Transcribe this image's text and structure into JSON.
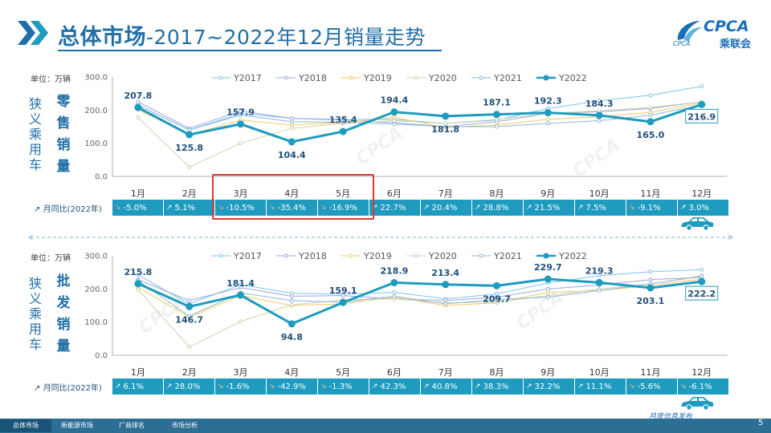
{
  "title": {
    "bold": "总体市场",
    "rest": "-2017~2022年12月销量走势"
  },
  "logo": {
    "abbr": "CPCA",
    "cn": "乘联会",
    "org": "CPCA"
  },
  "watermark_text": "CPCA",
  "footer": {
    "tabs": [
      "总体市场",
      "新能源市场",
      "厂商排名",
      "市场分析"
    ],
    "slogan": "月度信息发布",
    "page": "5"
  },
  "colors": {
    "primary": "#1f9bbf",
    "title": "#1f6fa8",
    "highlight": "#d93b33"
  },
  "chart_data": [
    {
      "type": "line",
      "unit": "单位：万辆",
      "side_label": "狭义乘用车",
      "label": "零售销量",
      "ylim": [
        0,
        300
      ],
      "yticks": [
        "0.0",
        "100.0",
        "200.0",
        "300.0"
      ],
      "categories": [
        "1月",
        "2月",
        "3月",
        "4月",
        "5月",
        "6月",
        "7月",
        "8月",
        "9月",
        "10月",
        "11月",
        "12月"
      ],
      "series": [
        {
          "name": "Y2017",
          "color": "#7fc4ee",
          "values": [
            215,
            140,
            190,
            175,
            172,
            172,
            160,
            170,
            205,
            228,
            245,
            272
          ]
        },
        {
          "name": "Y2018",
          "color": "#9ba6e0",
          "values": [
            225,
            145,
            197,
            175,
            170,
            162,
            150,
            165,
            190,
            195,
            205,
            225
          ]
        },
        {
          "name": "Y2019",
          "color": "#f2ca6a",
          "values": [
            202,
            125,
            170,
            155,
            162,
            178,
            148,
            155,
            172,
            180,
            193,
            222
          ]
        },
        {
          "name": "Y2020",
          "color": "#c8d6a8",
          "values": [
            178,
            28,
            100,
            145,
            160,
            168,
            160,
            172,
            190,
            198,
            208,
            225
          ]
        },
        {
          "name": "Y2021",
          "color": "#8cb8d8",
          "values": [
            215,
            140,
            185,
            165,
            163,
            158,
            150,
            150,
            160,
            168,
            185,
            215
          ]
        },
        {
          "name": "Y2022",
          "color": "#1f9bbf",
          "highlight": true,
          "values": [
            207.8,
            125.8,
            157.9,
            104.4,
            135.4,
            194.4,
            181.8,
            187.1,
            192.3,
            184.3,
            165.0,
            216.9
          ]
        }
      ],
      "data_labels": [
        "207.8",
        "125.8",
        "157.9",
        "104.4",
        "135.4",
        "194.4",
        "181.8",
        "187.1",
        "192.3",
        "184.3",
        "165.0",
        "216.9"
      ],
      "yoy_label": "月同比(2022年)",
      "yoy": [
        {
          "text": "-5.0%",
          "dir": "down"
        },
        {
          "text": "5.1%",
          "dir": "up"
        },
        {
          "text": "-10.5%",
          "dir": "down"
        },
        {
          "text": "-35.4%",
          "dir": "down"
        },
        {
          "text": "-16.9%",
          "dir": "down"
        },
        {
          "text": "22.7%",
          "dir": "up"
        },
        {
          "text": "20.4%",
          "dir": "up"
        },
        {
          "text": "28.8%",
          "dir": "up"
        },
        {
          "text": "21.5%",
          "dir": "up"
        },
        {
          "text": "7.5%",
          "dir": "up"
        },
        {
          "text": "-9.1%",
          "dir": "down"
        },
        {
          "text": "3.0%",
          "dir": "up"
        }
      ]
    },
    {
      "type": "line",
      "unit": "单位：万辆",
      "side_label": "狭义乘用车",
      "label": "批发销量",
      "ylim": [
        0,
        300
      ],
      "yticks": [
        "0.0",
        "100.0",
        "200.0",
        "300.0"
      ],
      "categories": [
        "1月",
        "2月",
        "3月",
        "4月",
        "5月",
        "6月",
        "7月",
        "8月",
        "9月",
        "10月",
        "11月",
        "12月"
      ],
      "series": [
        {
          "name": "Y2017",
          "color": "#7fc4ee",
          "values": [
            242,
            155,
            213,
            187,
            184,
            190,
            170,
            185,
            218,
            240,
            252,
            258
          ]
        },
        {
          "name": "Y2018",
          "color": "#9ba6e0",
          "values": [
            228,
            165,
            204,
            178,
            180,
            170,
            165,
            175,
            200,
            212,
            228,
            235
          ]
        },
        {
          "name": "Y2019",
          "color": "#f2ca6a",
          "values": [
            205,
            115,
            180,
            150,
            155,
            175,
            150,
            158,
            190,
            195,
            210,
            230
          ]
        },
        {
          "name": "Y2020",
          "color": "#c8d6a8",
          "values": [
            198,
            25,
            102,
            152,
            167,
            170,
            158,
            160,
            180,
            200,
            215,
            240
          ]
        },
        {
          "name": "Y2021",
          "color": "#8cb8d8",
          "values": [
            225,
            118,
            188,
            165,
            160,
            178,
            155,
            168,
            175,
            195,
            215,
            238
          ]
        },
        {
          "name": "Y2022",
          "color": "#1f9bbf",
          "highlight": true,
          "values": [
            215.8,
            146.7,
            181.4,
            94.8,
            159.1,
            218.9,
            213.4,
            209.7,
            229.7,
            219.3,
            203.1,
            222.2
          ]
        }
      ],
      "data_labels": [
        "215.8",
        "146.7",
        "181.4",
        "94.8",
        "159.1",
        "218.9",
        "213.4",
        "209.7",
        "229.7",
        "219.3",
        "203.1",
        "222.2"
      ],
      "yoy_label": "月同比(2022年)",
      "yoy": [
        {
          "text": "6.1%",
          "dir": "up"
        },
        {
          "text": "28.0%",
          "dir": "up"
        },
        {
          "text": "-1.6%",
          "dir": "down"
        },
        {
          "text": "-42.9%",
          "dir": "down"
        },
        {
          "text": "-1.3%",
          "dir": "down"
        },
        {
          "text": "42.3%",
          "dir": "up"
        },
        {
          "text": "40.8%",
          "dir": "up"
        },
        {
          "text": "38.3%",
          "dir": "up"
        },
        {
          "text": "32.2%",
          "dir": "up"
        },
        {
          "text": "11.1%",
          "dir": "up"
        },
        {
          "text": "-5.6%",
          "dir": "down"
        },
        {
          "text": "-6.1%",
          "dir": "down"
        }
      ]
    }
  ]
}
